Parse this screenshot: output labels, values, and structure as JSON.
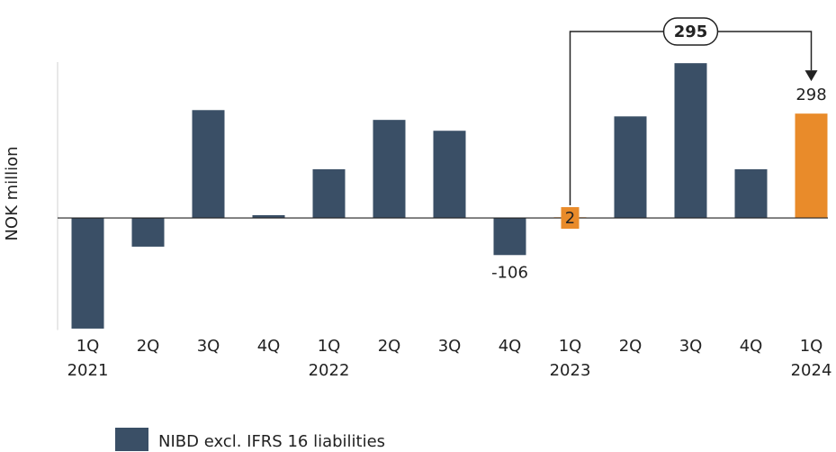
{
  "chart_data": {
    "type": "bar",
    "y_label": "NOK million",
    "categories": [
      "1Q",
      "2Q",
      "3Q",
      "4Q",
      "1Q",
      "2Q",
      "3Q",
      "4Q",
      "1Q",
      "2Q",
      "3Q",
      "4Q",
      "1Q"
    ],
    "years": [
      "2021",
      null,
      null,
      null,
      "2022",
      null,
      null,
      null,
      "2023",
      null,
      null,
      null,
      "2024"
    ],
    "series": [
      {
        "name": "NIBD excl. IFRS 16 liabilities",
        "color": "#3a4f66",
        "values": [
          -316,
          -82,
          308,
          8,
          139,
          280,
          249,
          -106,
          2,
          290,
          442,
          139,
          298
        ],
        "value_labels": [
          null,
          null,
          null,
          null,
          null,
          null,
          null,
          "-106",
          "2",
          null,
          null,
          null,
          "298"
        ],
        "colors": [
          "#3a4f66",
          "#3a4f66",
          "#3a4f66",
          "#3a4f66",
          "#3a4f66",
          "#3a4f66",
          "#3a4f66",
          "#3a4f66",
          "#e98b2a",
          "#3a4f66",
          "#3a4f66",
          "#3a4f66",
          "#e98b2a"
        ]
      }
    ],
    "ylim": [
      -320,
      445
    ],
    "annotation": {
      "text": "295",
      "from": 8,
      "to": 12
    }
  }
}
